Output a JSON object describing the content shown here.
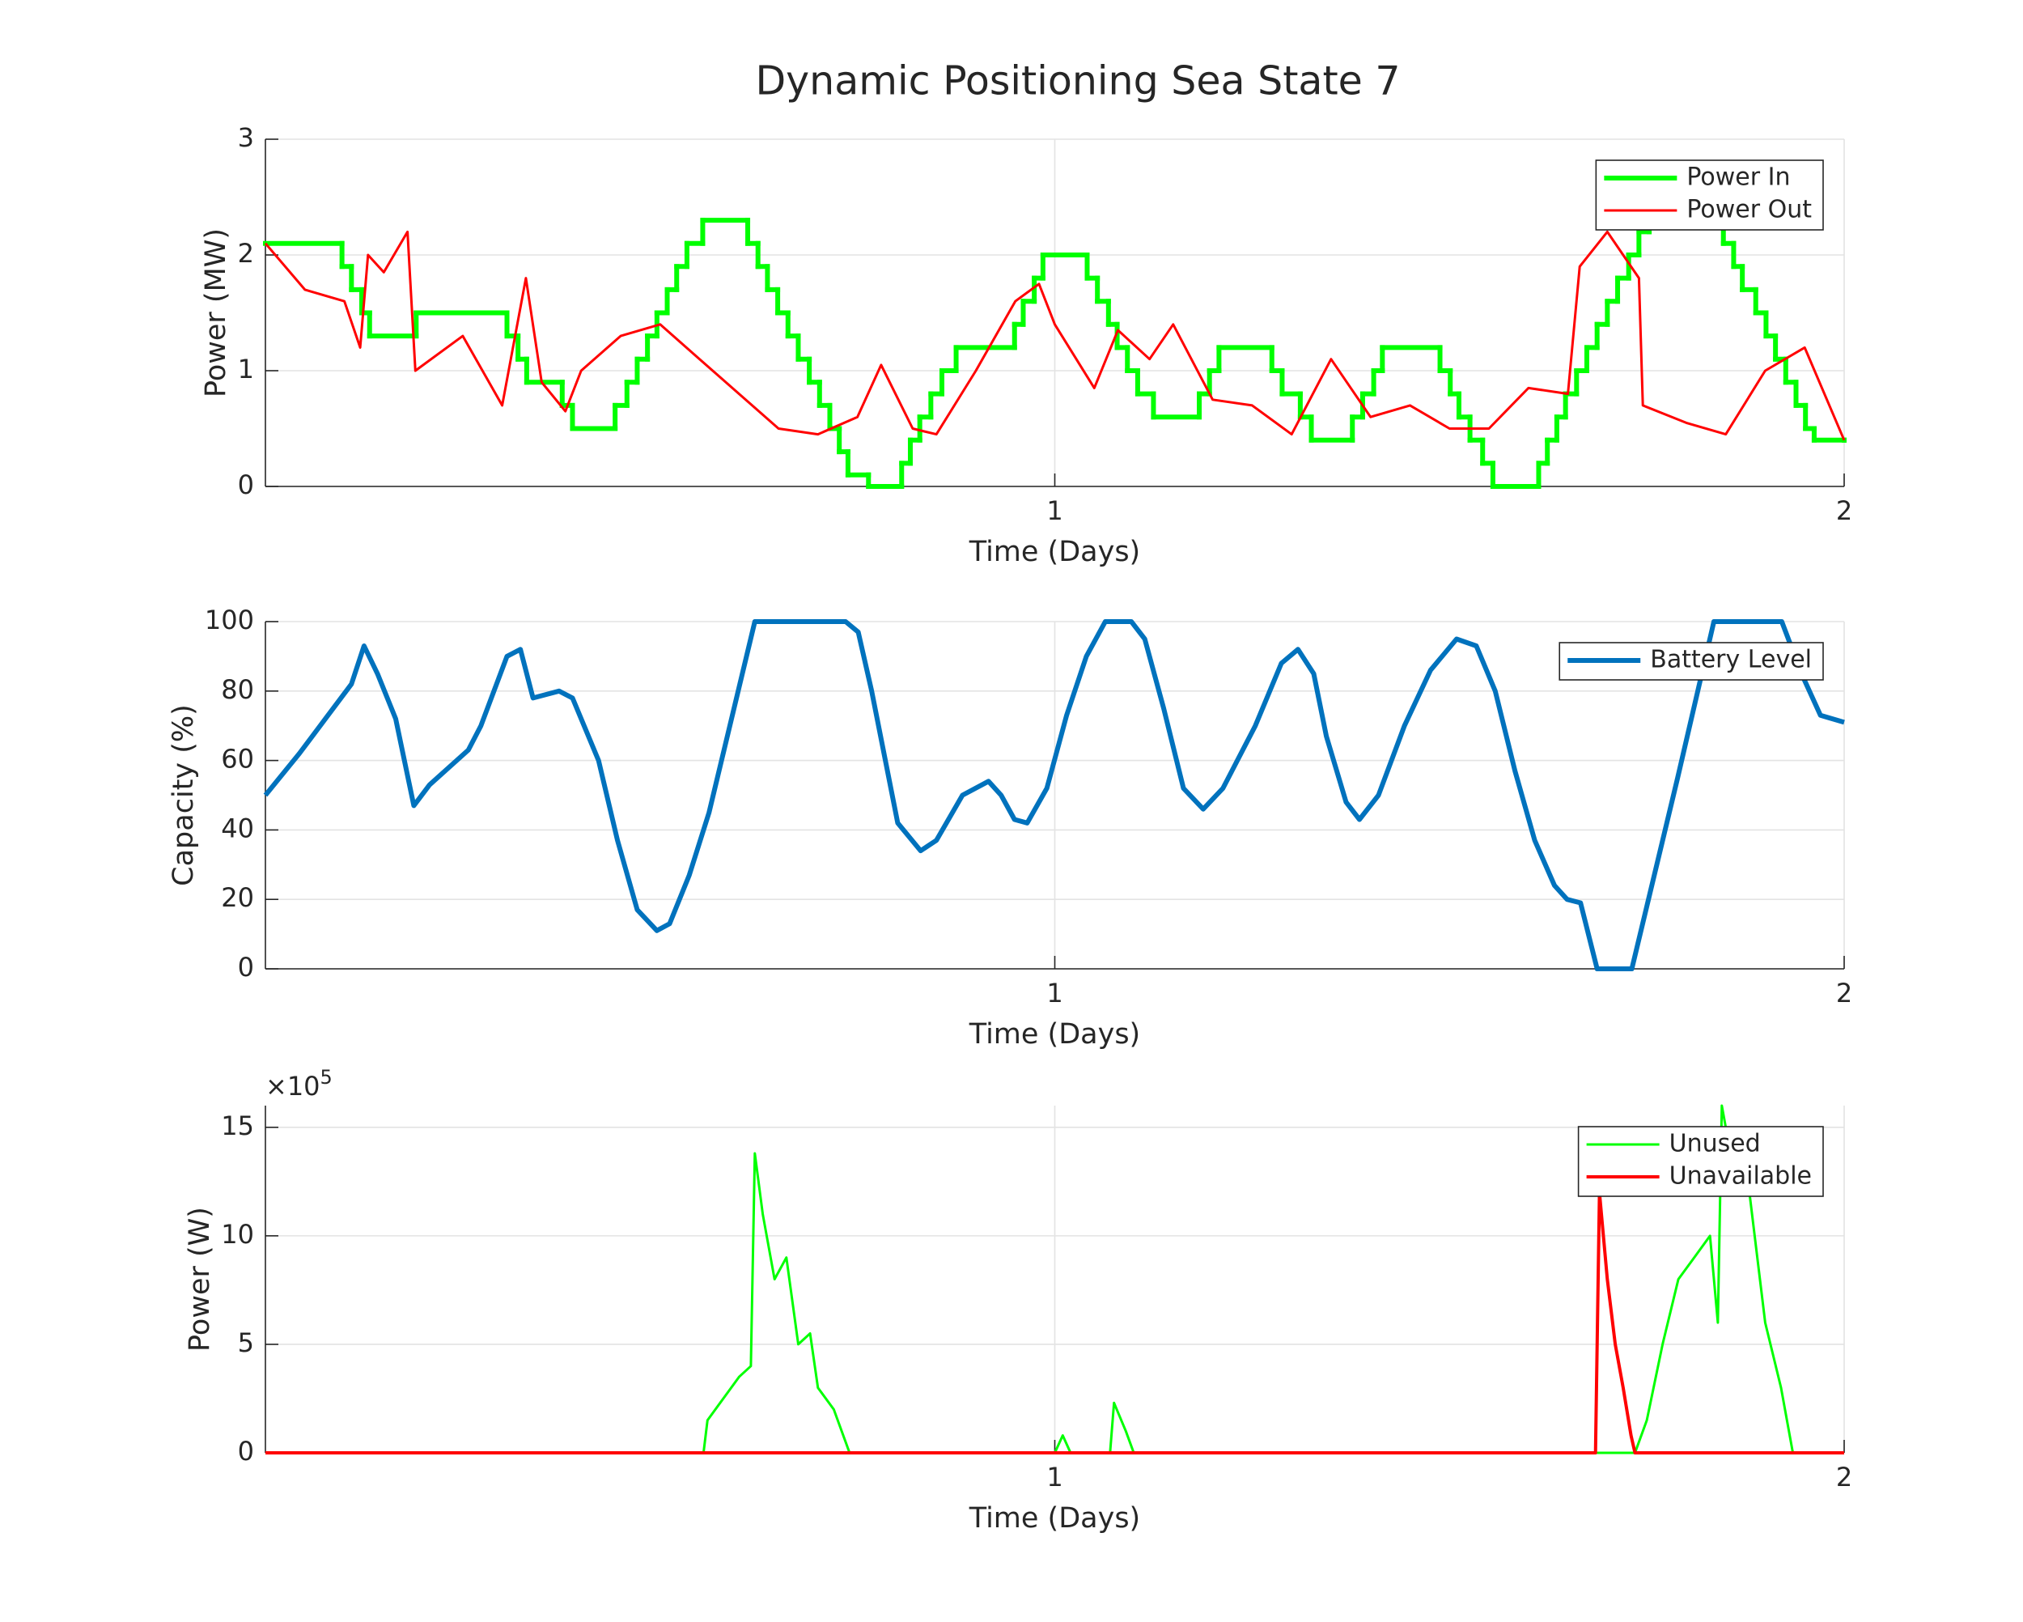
{
  "title": "Dynamic Positioning Sea State 7",
  "chart_data": [
    {
      "type": "line",
      "xlabel": "Time (Days)",
      "ylabel": "Power (MW)",
      "xlim": [
        0,
        2
      ],
      "ylim": [
        0,
        3
      ],
      "xticks": [
        1,
        2
      ],
      "yticks": [
        0,
        1,
        2,
        3
      ],
      "grid": true,
      "legend": "northeast",
      "series": [
        {
          "name": "Power In",
          "color": "#00ff00",
          "line_width": 6,
          "step": true,
          "x": [
            0,
            0.097,
            0.109,
            0.122,
            0.132,
            0.191,
            0.306,
            0.32,
            0.331,
            0.376,
            0.389,
            0.443,
            0.458,
            0.471,
            0.484,
            0.496,
            0.509,
            0.521,
            0.534,
            0.554,
            0.611,
            0.624,
            0.636,
            0.649,
            0.662,
            0.675,
            0.689,
            0.702,
            0.715,
            0.727,
            0.738,
            0.764,
            0.806,
            0.817,
            0.829,
            0.843,
            0.857,
            0.875,
            0.949,
            0.96,
            0.974,
            0.985,
            1.041,
            1.054,
            1.068,
            1.079,
            1.092,
            1.105,
            1.125,
            1.183,
            1.196,
            1.208,
            1.275,
            1.288,
            1.311,
            1.325,
            1.377,
            1.39,
            1.404,
            1.415,
            1.488,
            1.501,
            1.512,
            1.526,
            1.542,
            1.555,
            1.613,
            1.624,
            1.636,
            1.647,
            1.661,
            1.674,
            1.687,
            1.7,
            1.713,
            1.727,
            1.74,
            1.753,
            1.847,
            1.86,
            1.871,
            1.888,
            1.901,
            1.913,
            1.926,
            1.939,
            1.951,
            1.962,
            2
          ],
          "values": [
            2.1,
            1.9,
            1.7,
            1.5,
            1.3,
            1.5,
            1.3,
            1.1,
            0.9,
            0.7,
            0.5,
            0.7,
            0.9,
            1.1,
            1.3,
            1.5,
            1.7,
            1.9,
            2.1,
            2.3,
            2.1,
            1.9,
            1.7,
            1.5,
            1.3,
            1.1,
            0.9,
            0.7,
            0.5,
            0.3,
            0.1,
            0,
            0.2,
            0.4,
            0.6,
            0.8,
            1.0,
            1.2,
            1.4,
            1.6,
            1.8,
            2.0,
            1.8,
            1.6,
            1.4,
            1.2,
            1.0,
            0.8,
            0.6,
            0.8,
            1.0,
            1.2,
            1.0,
            0.8,
            0.6,
            0.4,
            0.6,
            0.8,
            1.0,
            1.2,
            1.0,
            0.8,
            0.6,
            0.4,
            0.2,
            0,
            0.2,
            0.4,
            0.6,
            0.8,
            1.0,
            1.2,
            1.4,
            1.6,
            1.8,
            2.0,
            2.2,
            2.3,
            2.1,
            1.9,
            1.7,
            1.5,
            1.3,
            1.1,
            0.9,
            0.7,
            0.5,
            0.4,
            0.4
          ]
        },
        {
          "name": "Power Out",
          "color": "#ff0000",
          "line_width": 3,
          "x": [
            0,
            0.05,
            0.1,
            0.12,
            0.13,
            0.15,
            0.18,
            0.19,
            0.25,
            0.3,
            0.33,
            0.35,
            0.38,
            0.4,
            0.45,
            0.5,
            0.55,
            0.6,
            0.65,
            0.7,
            0.75,
            0.78,
            0.82,
            0.85,
            0.9,
            0.95,
            0.98,
            1.0,
            1.05,
            1.08,
            1.12,
            1.15,
            1.2,
            1.25,
            1.3,
            1.35,
            1.4,
            1.45,
            1.5,
            1.55,
            1.6,
            1.65,
            1.665,
            1.7,
            1.74,
            1.745,
            1.8,
            1.85,
            1.9,
            1.95,
            2.0
          ],
          "values": [
            2.1,
            1.7,
            1.6,
            1.2,
            2.0,
            1.85,
            2.2,
            1.0,
            1.3,
            0.7,
            1.8,
            0.9,
            0.65,
            1.0,
            1.3,
            1.4,
            1.1,
            0.8,
            0.5,
            0.45,
            0.6,
            1.05,
            0.5,
            0.45,
            1.0,
            1.6,
            1.75,
            1.4,
            0.85,
            1.35,
            1.1,
            1.4,
            0.75,
            0.7,
            0.45,
            1.1,
            0.6,
            0.7,
            0.5,
            0.5,
            0.85,
            0.8,
            1.9,
            2.2,
            1.8,
            0.7,
            0.55,
            0.45,
            1.0,
            1.2,
            0.4
          ]
        }
      ]
    },
    {
      "type": "line",
      "xlabel": "Time (Days)",
      "ylabel": "Capacity (%)",
      "xlim": [
        0,
        2
      ],
      "ylim": [
        0,
        100
      ],
      "xticks": [
        1,
        2
      ],
      "yticks": [
        0,
        20,
        40,
        60,
        80,
        100
      ],
      "grid": true,
      "legend": "northeast",
      "series": [
        {
          "name": "Battery Level",
          "color": "#0072bd",
          "line_width": 6,
          "x": [
            0,
            0.043,
            0.076,
            0.109,
            0.125,
            0.142,
            0.165,
            0.188,
            0.208,
            0.257,
            0.273,
            0.306,
            0.323,
            0.339,
            0.372,
            0.389,
            0.422,
            0.446,
            0.471,
            0.496,
            0.512,
            0.537,
            0.562,
            0.62,
            0.735,
            0.751,
            0.768,
            0.801,
            0.83,
            0.85,
            0.883,
            0.916,
            0.932,
            0.949,
            0.965,
            0.99,
            1.015,
            1.04,
            1.064,
            1.097,
            1.114,
            1.138,
            1.163,
            1.188,
            1.213,
            1.254,
            1.287,
            1.308,
            1.328,
            1.344,
            1.369,
            1.386,
            1.41,
            1.443,
            1.476,
            1.509,
            1.534,
            1.558,
            1.583,
            1.608,
            1.633,
            1.649,
            1.666,
            1.687,
            1.731,
            1.789,
            1.835,
            1.921,
            1.946,
            1.97,
            2.0
          ],
          "values": [
            50,
            62,
            72,
            82,
            93,
            85,
            72,
            47,
            53,
            63,
            70,
            90,
            92,
            78,
            80,
            78,
            60,
            37,
            17,
            11,
            13,
            27,
            45,
            100,
            100,
            97,
            80,
            42,
            34,
            37,
            50,
            54,
            50,
            43,
            42,
            52,
            73,
            90,
            100,
            100,
            95,
            75,
            52,
            46,
            52,
            70,
            88,
            92,
            85,
            67,
            48,
            43,
            50,
            70,
            86,
            95,
            93,
            80,
            57,
            37,
            24,
            20,
            19,
            0,
            0,
            55,
            100,
            100,
            85,
            73,
            71
          ]
        }
      ]
    },
    {
      "type": "line",
      "xlabel": "Time (Days)",
      "ylabel": "Power (W)",
      "xlim": [
        0,
        2
      ],
      "ylim": [
        0,
        1600000
      ],
      "xticks": [
        1,
        2
      ],
      "yticks": [
        0,
        {
          "value": 500000,
          "label": "5"
        },
        {
          "value": 1000000,
          "label": "10"
        },
        {
          "value": 1500000,
          "label": "15"
        }
      ],
      "y_multiplier": {
        "base": "×10",
        "exponent": "5"
      },
      "grid": true,
      "legend": "northeast",
      "series": [
        {
          "name": "Unused",
          "color": "#00ff00",
          "line_width": 3,
          "x": [
            0,
            0.555,
            0.56,
            0.58,
            0.6,
            0.615,
            0.62,
            0.63,
            0.645,
            0.66,
            0.675,
            0.69,
            0.7,
            0.72,
            0.74,
            1.0,
            1.01,
            1.02,
            1.07,
            1.075,
            1.09,
            1.1,
            1.735,
            1.75,
            1.77,
            1.79,
            1.81,
            1.83,
            1.84,
            1.845,
            1.86,
            1.88,
            1.9,
            1.92,
            1.935,
            2.0
          ],
          "values": [
            0,
            0,
            150000,
            250000,
            350000,
            400000,
            1380000,
            1100000,
            800000,
            900000,
            500000,
            550000,
            300000,
            200000,
            0,
            0,
            80000,
            0,
            0,
            230000,
            100000,
            0,
            0,
            150000,
            500000,
            800000,
            900000,
            1000000,
            600000,
            1600000,
            1300000,
            1200000,
            600000,
            300000,
            0,
            0
          ]
        },
        {
          "name": "Unavailable",
          "color": "#ff0000",
          "line_width": 4,
          "x": [
            0,
            1.685,
            1.69,
            1.7,
            1.71,
            1.72,
            1.73,
            1.735,
            2.0
          ],
          "values": [
            0,
            0,
            1200000,
            800000,
            500000,
            300000,
            80000,
            0,
            0
          ]
        }
      ]
    }
  ]
}
